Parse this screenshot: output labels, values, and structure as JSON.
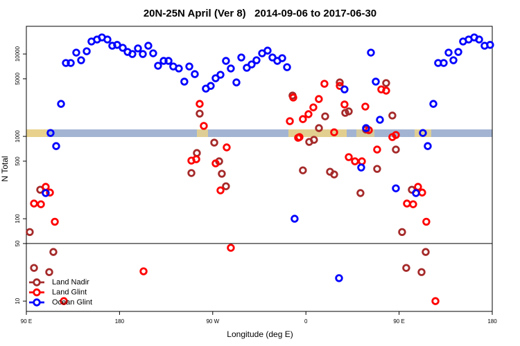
{
  "chart_data": {
    "type": "scatter",
    "title": "20N-25N April (Ver 8)   2014-09-06 to 2017-06-30",
    "x_label": "Longitude (deg E)",
    "y_label": "N Total",
    "xlim": [
      90,
      540
    ],
    "xticks": [
      {
        "value": 90,
        "label": "90 E"
      },
      180,
      {
        "value": 270,
        "label": "90 W"
      },
      {
        "value": 360,
        "label": "0"
      },
      {
        "value": 450,
        "label": "90 E"
      },
      {
        "value": 540,
        "label": "180"
      }
    ],
    "ylim": [
      7.5,
      21700
    ],
    "log_y": true,
    "yticks": [
      10,
      50,
      100,
      500,
      1000,
      5000,
      10000
    ],
    "hline": 50,
    "legend": "bottom-left",
    "series": [
      {
        "name": "Land Nadir",
        "color": "#a52a2a",
        "x": [
          93.3,
          97.4,
          103.4,
          112.1,
          116.1,
          249.4,
          254.7,
          257.4,
          271.5,
          276.2,
          278.8,
          282.8,
          347.1,
          357.1,
          363.2,
          367.8,
          372.6,
          378.6,
          383.3,
          387.3,
          392.7,
          398.0,
          401.4,
          412.7,
          418.1,
          428.8,
          437.5,
          443.5,
          446.9,
          452.9,
          456.9,
          462.3,
          471.7,
          475.7
        ],
        "values": [
          69,
          25.3,
          225,
          22.5,
          39.5,
          359,
          628,
          1890,
          840,
          498,
          352,
          248,
          3130,
          387,
          857,
          908,
          1260,
          1750,
          372,
          345,
          4520,
          1930,
          2010,
          205,
          1210,
          403,
          4440,
          1790,
          692,
          69,
          25.3,
          225,
          22.5,
          39.5
        ]
      },
      {
        "name": "Land Glint",
        "color": "#ff0000",
        "x": [
          97.4,
          104.1,
          108.7,
          112.8,
          117.5,
          126.2,
          203.2,
          249.4,
          254.1,
          257.4,
          261.4,
          272.8,
          277.5,
          283.5,
          287.5,
          344.5,
          347.8,
          352.5,
          353.8,
          357.1,
          362.5,
          367.2,
          372.5,
          377.9,
          387.3,
          392.7,
          397.3,
          401.4,
          407.4,
          414.1,
          417.4,
          420.8,
          428.8,
          432.8,
          437.5,
          443.5,
          446.9,
          457.6,
          463.6,
          468.3,
          472.3,
          476.3,
          485.1
        ],
        "values": [
          153,
          150,
          244,
          208,
          92,
          10,
          23,
          508,
          528,
          2480,
          1340,
          470,
          221,
          735,
          44.4,
          1530,
          2960,
          962,
          981,
          1620,
          1860,
          2250,
          2840,
          4350,
          1120,
          4100,
          2440,
          560,
          498,
          498,
          2300,
          1190,
          692,
          3720,
          3590,
          981,
          1040,
          153,
          150,
          244,
          208,
          92,
          10
        ]
      },
      {
        "name": "Ocean Glint",
        "color": "#0000ff",
        "x": [
          108.7,
          113.4,
          118.8,
          123.5,
          128.2,
          132.9,
          138.2,
          142.9,
          148.3,
          152.9,
          158.3,
          163.0,
          168.3,
          173.0,
          177.7,
          183.1,
          187.8,
          192.4,
          197.8,
          202.5,
          207.8,
          212.5,
          217.2,
          222.6,
          227.3,
          231.9,
          237.3,
          242.6,
          247.4,
          252.7,
          263.4,
          268.1,
          272.8,
          277.5,
          282.8,
          287.5,
          292.9,
          297.6,
          302.9,
          307.6,
          312.3,
          317.7,
          323.0,
          327.7,
          332.4,
          337.1,
          341.8,
          349.1,
          392.0,
          397.3,
          413.4,
          418.1,
          422.8,
          427.5,
          431.5,
          446.9,
          466.3,
          473.0,
          477.7,
          483.1,
          487.7,
          493.1,
          497.8,
          502.5,
          507.2,
          511.8,
          517.2,
          522.6,
          527.3,
          532.6,
          537.9
        ],
        "values": [
          205,
          1100,
          762,
          2480,
          7780,
          7780,
          10400,
          8400,
          10800,
          14200,
          15000,
          15900,
          15000,
          12600,
          12900,
          11900,
          10600,
          10000,
          11700,
          10000,
          12600,
          10200,
          7200,
          8250,
          8250,
          7060,
          6670,
          4620,
          7060,
          5700,
          3800,
          4100,
          5080,
          5600,
          8250,
          6670,
          4520,
          9080,
          6800,
          7480,
          8400,
          10200,
          11000,
          9080,
          8250,
          8900,
          6920,
          100,
          19,
          3720,
          419,
          1260,
          10400,
          4620,
          1590,
          234,
          205,
          1100,
          762,
          2480,
          7780,
          7780,
          10400,
          8400,
          10600,
          14200,
          15000,
          15900,
          15000,
          12600,
          12900
        ]
      }
    ]
  }
}
